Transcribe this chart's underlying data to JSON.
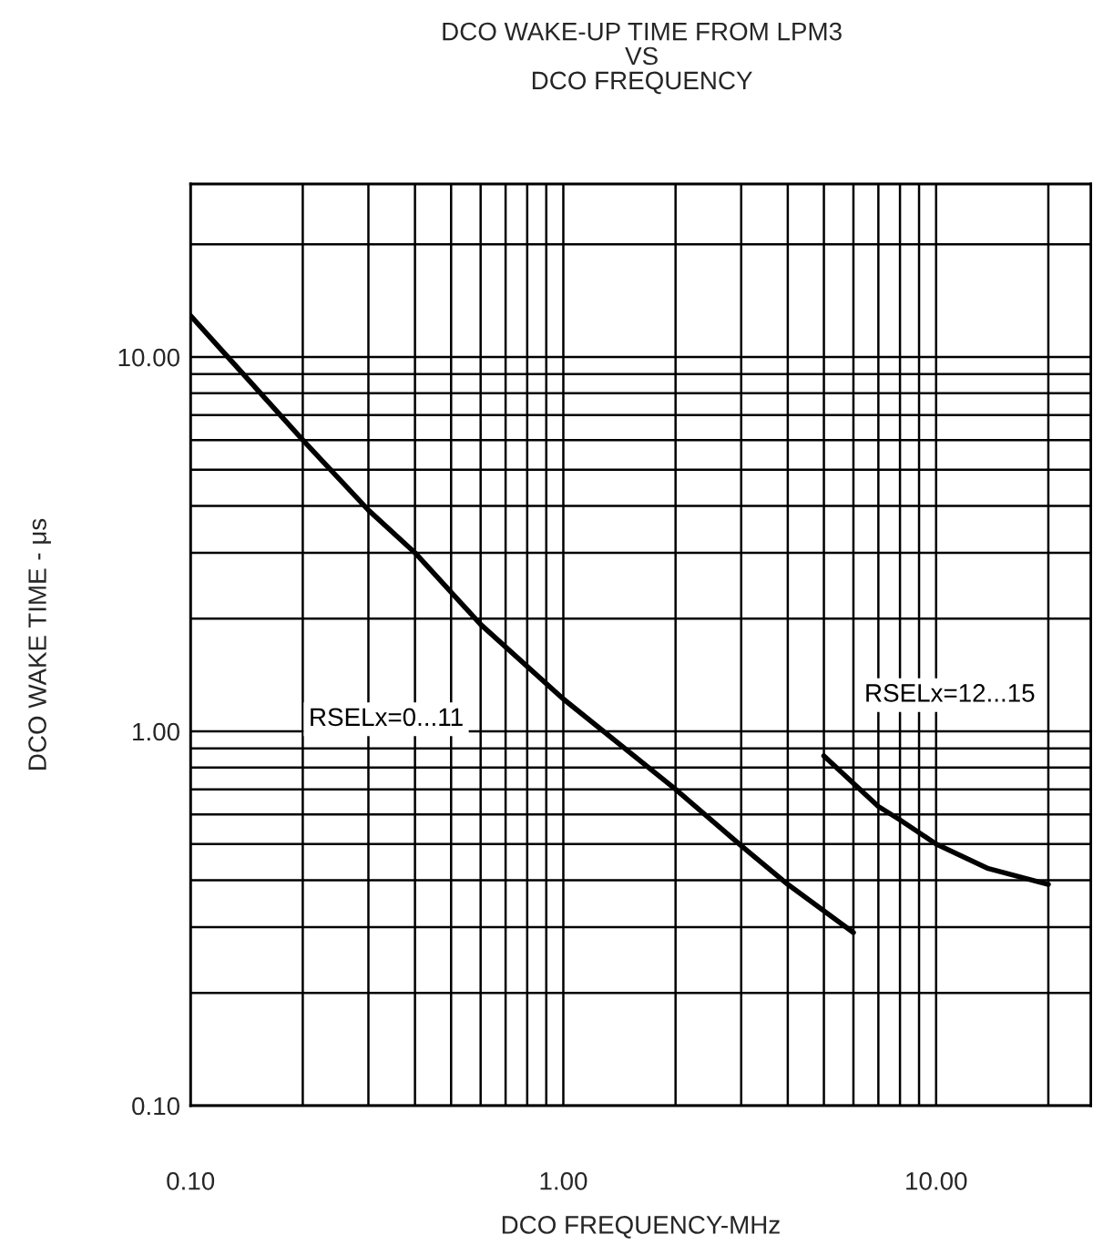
{
  "chart_data": {
    "type": "line",
    "title": "DCO WAKE-UP TIME FROM LPM3\nVS\nDCO FREQUENCY",
    "xlabel": "DCO FREQUENCY-MHz",
    "ylabel": "DCO WAKE TIME - μs",
    "log": "xy",
    "grid": true,
    "legend": false,
    "marker": "none",
    "line_style": "solid",
    "xlim": [
      0.1,
      26
    ],
    "ylim": [
      0.1,
      29
    ],
    "xticks": [
      {
        "value": 0.1,
        "label": "0.10"
      },
      {
        "value": 0.2,
        "label": null
      },
      {
        "value": 0.3,
        "label": null
      },
      {
        "value": 0.4,
        "label": null
      },
      {
        "value": 0.5,
        "label": null
      },
      {
        "value": 0.6,
        "label": null
      },
      {
        "value": 0.7,
        "label": null
      },
      {
        "value": 0.8,
        "label": null
      },
      {
        "value": 0.9,
        "label": null
      },
      {
        "value": 1,
        "label": "1.00"
      },
      {
        "value": 2,
        "label": null
      },
      {
        "value": 3,
        "label": null
      },
      {
        "value": 4,
        "label": null
      },
      {
        "value": 5,
        "label": null
      },
      {
        "value": 6,
        "label": null
      },
      {
        "value": 7,
        "label": null
      },
      {
        "value": 8,
        "label": null
      },
      {
        "value": 9,
        "label": null
      },
      {
        "value": 10,
        "label": "10.00"
      },
      {
        "value": 20,
        "label": null
      }
    ],
    "yticks": [
      {
        "value": 0.1,
        "label": "0.10"
      },
      {
        "value": 0.2,
        "label": null
      },
      {
        "value": 0.3,
        "label": null
      },
      {
        "value": 0.4,
        "label": null
      },
      {
        "value": 0.5,
        "label": null
      },
      {
        "value": 0.6,
        "label": null
      },
      {
        "value": 0.7,
        "label": null
      },
      {
        "value": 0.8,
        "label": null
      },
      {
        "value": 0.9,
        "label": null
      },
      {
        "value": 1,
        "label": "1.00"
      },
      {
        "value": 2,
        "label": null
      },
      {
        "value": 3,
        "label": null
      },
      {
        "value": 4,
        "label": null
      },
      {
        "value": 5,
        "label": null
      },
      {
        "value": 6,
        "label": null
      },
      {
        "value": 7,
        "label": null
      },
      {
        "value": 8,
        "label": null
      },
      {
        "value": 9,
        "label": null
      },
      {
        "value": 10,
        "label": "10.00"
      },
      {
        "value": 20,
        "label": null
      }
    ],
    "series": [
      {
        "name": "RSELx=0...11",
        "color": "#000000",
        "x": [
          0.1,
          0.2,
          0.3,
          0.4,
          0.6,
          1.0,
          2.0,
          3.0,
          4.0,
          6.0
        ],
        "values": [
          12.9,
          6.0,
          3.9,
          3.0,
          1.93,
          1.22,
          0.7,
          0.495,
          0.39,
          0.29
        ]
      },
      {
        "name": "RSELx=12...15",
        "color": "#000000",
        "x": [
          5.0,
          7.0,
          8.0,
          10.0,
          13.8,
          20.0
        ],
        "values": [
          0.86,
          0.63,
          0.58,
          0.5,
          0.43,
          0.39
        ]
      }
    ]
  }
}
